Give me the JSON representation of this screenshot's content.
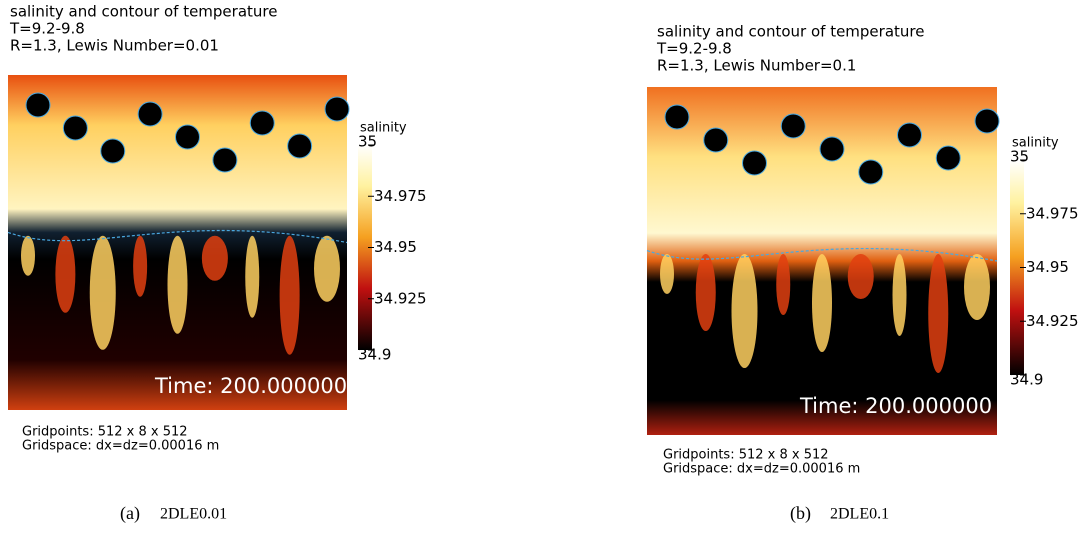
{
  "panels": [
    {
      "title": [
        "salinity and contour of temperature",
        "T=9.2-9.8",
        "R=1.3, Lewis Number=0.01"
      ],
      "colorbar": {
        "label": "salinity",
        "ticks": [
          35,
          34.975,
          34.95,
          34.925,
          34.9
        ]
      },
      "time": "Time: 200.000000",
      "grid": [
        "Gridpoints: 512 x 8 x 512",
        "Gridspace: dx=dz=0.00016 m"
      ],
      "caption": {
        "label": "(a)",
        "name": "2DLE0.01"
      }
    },
    {
      "title": [
        "salinity and contour of temperature",
        "T=9.2-9.8",
        "R=1.3, Lewis Number=0.1"
      ],
      "colorbar": {
        "label": "salinity",
        "ticks": [
          35,
          34.975,
          34.95,
          34.925,
          34.9
        ]
      },
      "time": "Time: 200.000000",
      "grid": [
        "Gridpoints: 512 x 8 x 512",
        "Gridspace: dx=dz=0.00016 m"
      ],
      "caption": {
        "label": "(b)",
        "name": "2DLE0.1"
      }
    }
  ]
}
